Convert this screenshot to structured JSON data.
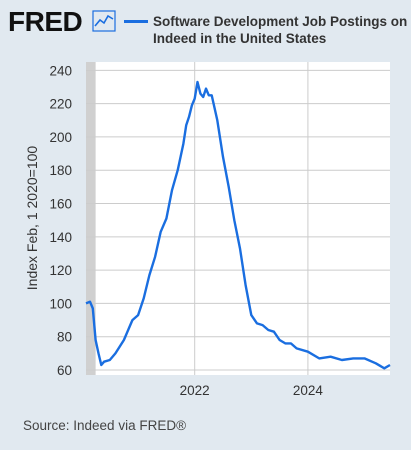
{
  "header": {
    "logo_text": "FRED",
    "logo_icon": "fred-chart-icon",
    "legend_label": "Software Development Job Postings on Indeed in the United States"
  },
  "footer": {
    "source": "Source: Indeed via FRED®"
  },
  "colors": {
    "background": "#e1e9f0",
    "plot_bg": "#ffffff",
    "line": "#1a6ee0",
    "grid": "#cccccc",
    "recession": "#d0d0d0"
  },
  "chart_data": {
    "type": "line",
    "title": "Software Development Job Postings on Indeed in the United States",
    "ylabel": "Index Feb, 1 2020=100",
    "xlabel": "",
    "ylim": [
      57,
      245
    ],
    "xlim": [
      2020.08,
      2025.45
    ],
    "yticks": [
      60,
      80,
      100,
      120,
      140,
      160,
      180,
      200,
      220,
      240
    ],
    "xticks": [
      2022,
      2024
    ],
    "grid": true,
    "legend": "top",
    "shaded_regions": [
      [
        2020.08,
        2020.25
      ]
    ],
    "series": [
      {
        "name": "Software Development Job Postings on Indeed in the United States",
        "x": [
          2020.08,
          2020.15,
          2020.2,
          2020.25,
          2020.3,
          2020.35,
          2020.4,
          2020.5,
          2020.6,
          2020.75,
          2020.9,
          2021.0,
          2021.1,
          2021.2,
          2021.3,
          2021.4,
          2021.5,
          2021.6,
          2021.7,
          2021.8,
          2021.85,
          2021.9,
          2021.95,
          2022.0,
          2022.05,
          2022.1,
          2022.15,
          2022.2,
          2022.25,
          2022.3,
          2022.4,
          2022.5,
          2022.6,
          2022.7,
          2022.8,
          2022.9,
          2023.0,
          2023.1,
          2023.2,
          2023.3,
          2023.4,
          2023.5,
          2023.6,
          2023.7,
          2023.8,
          2024.0,
          2024.2,
          2024.4,
          2024.6,
          2024.8,
          2025.0,
          2025.2,
          2025.35,
          2025.45
        ],
        "values": [
          100,
          101,
          97,
          78,
          70,
          63,
          65,
          66,
          70,
          78,
          90,
          93,
          103,
          117,
          128,
          143,
          151,
          168,
          180,
          196,
          207,
          212,
          219,
          223,
          233,
          226,
          224,
          229,
          225,
          225,
          210,
          188,
          170,
          150,
          133,
          111,
          93,
          88,
          87,
          84,
          83,
          78,
          76,
          76,
          73,
          71,
          67,
          68,
          66,
          67,
          67,
          64,
          61,
          63
        ]
      }
    ]
  }
}
